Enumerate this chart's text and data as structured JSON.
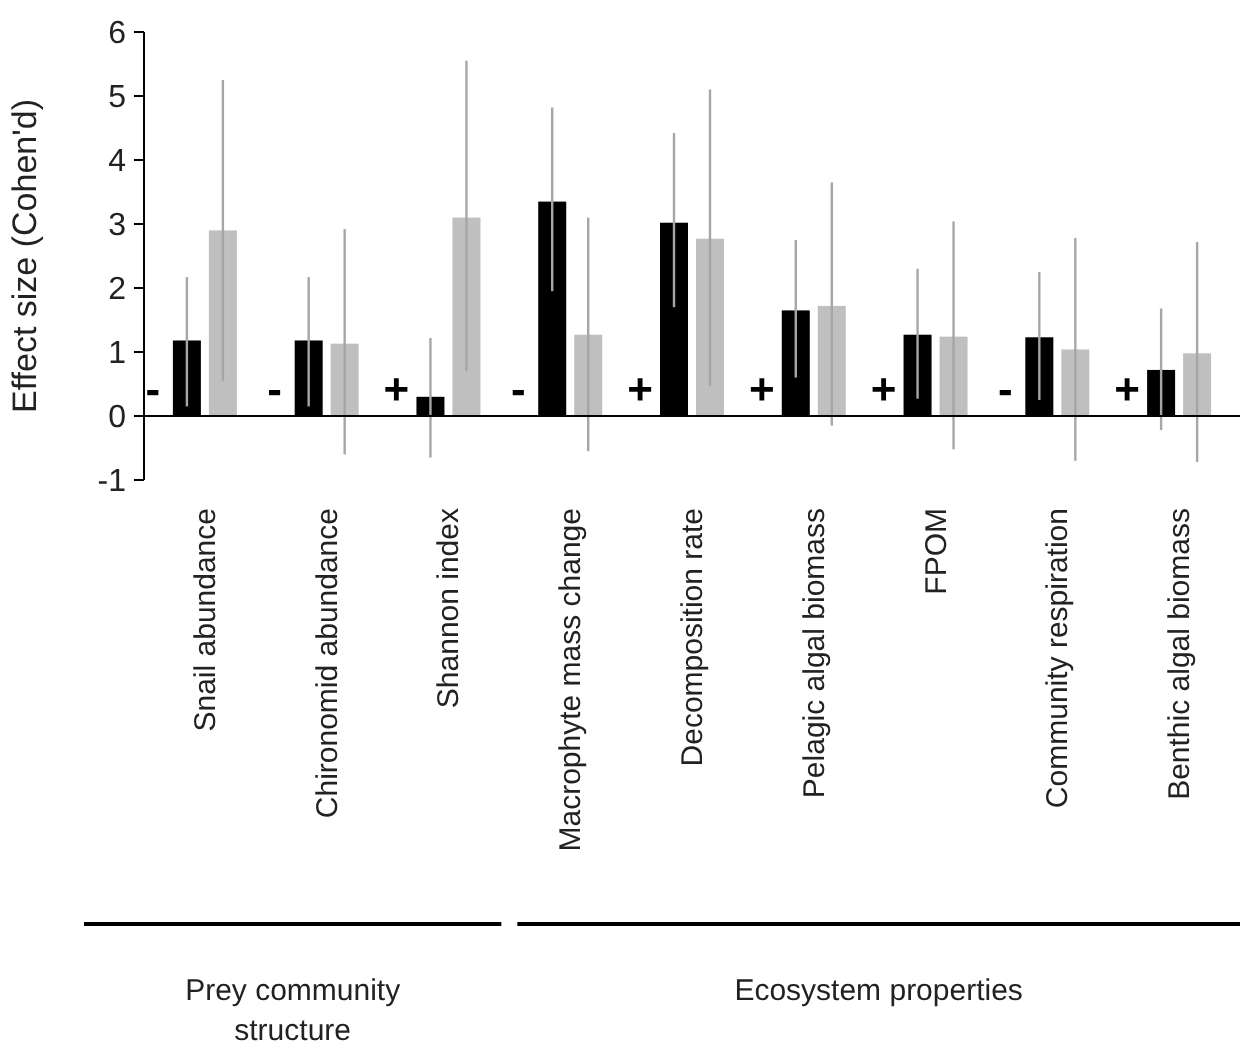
{
  "chart_data": {
    "type": "bar",
    "ylabel": "Effect size (Cohen'd)",
    "categories": [
      "Snail abundance",
      "Chironomid abundance",
      "Shannon index",
      "Macrophyte mass change",
      "Decomposition rate",
      "Pelagic algal biomass",
      "FPOM",
      "Community respiration",
      "Benthic algal biomass"
    ],
    "series": [
      {
        "color": "#000000",
        "values": [
          1.18,
          1.18,
          0.3,
          3.35,
          3.02,
          1.65,
          1.27,
          1.23,
          0.72
        ],
        "errors": [
          [
            0.15,
            2.17
          ],
          [
            0.15,
            2.17
          ],
          [
            -0.65,
            1.22
          ],
          [
            1.95,
            4.82
          ],
          [
            1.7,
            4.42
          ],
          [
            0.6,
            2.75
          ],
          [
            0.27,
            2.3
          ],
          [
            0.25,
            2.25
          ],
          [
            -0.22,
            1.68
          ]
        ]
      },
      {
        "color": "#bfbfbf",
        "values": [
          2.9,
          1.13,
          3.1,
          1.27,
          2.77,
          1.72,
          1.24,
          1.04,
          0.98
        ],
        "errors": [
          [
            0.55,
            5.25
          ],
          [
            -0.6,
            2.92
          ],
          [
            0.7,
            5.55
          ],
          [
            -0.55,
            3.1
          ],
          [
            0.47,
            5.1
          ],
          [
            -0.15,
            3.65
          ],
          [
            -0.52,
            3.04
          ],
          [
            -0.7,
            2.78
          ],
          [
            -0.72,
            2.72
          ]
        ]
      }
    ],
    "ylim": [
      -1,
      6
    ],
    "yticks": [
      -1,
      0,
      1,
      2,
      3,
      4,
      5,
      6
    ],
    "annotations": [
      {
        "text": "-",
        "x": "Snail abundance",
        "y": 0
      },
      {
        "text": "-",
        "x": "Chironomid abundance",
        "y": 0
      },
      {
        "text": "+",
        "x": "Shannon index",
        "y": 0
      },
      {
        "text": "-",
        "x": "Macrophyte mass change",
        "y": 0
      },
      {
        "text": "+",
        "x": "Decomposition rate",
        "y": 0
      },
      {
        "text": "+",
        "x": "Pelagic algal biomass",
        "y": 0
      },
      {
        "text": "+",
        "x": "FPOM",
        "y": 0
      },
      {
        "text": "-",
        "x": "Community respiration",
        "y": 0
      },
      {
        "text": "+",
        "x": "Benthic algal biomass",
        "y": 0
      },
      "Prey community structure",
      "Ecosystem properties"
    ]
  }
}
